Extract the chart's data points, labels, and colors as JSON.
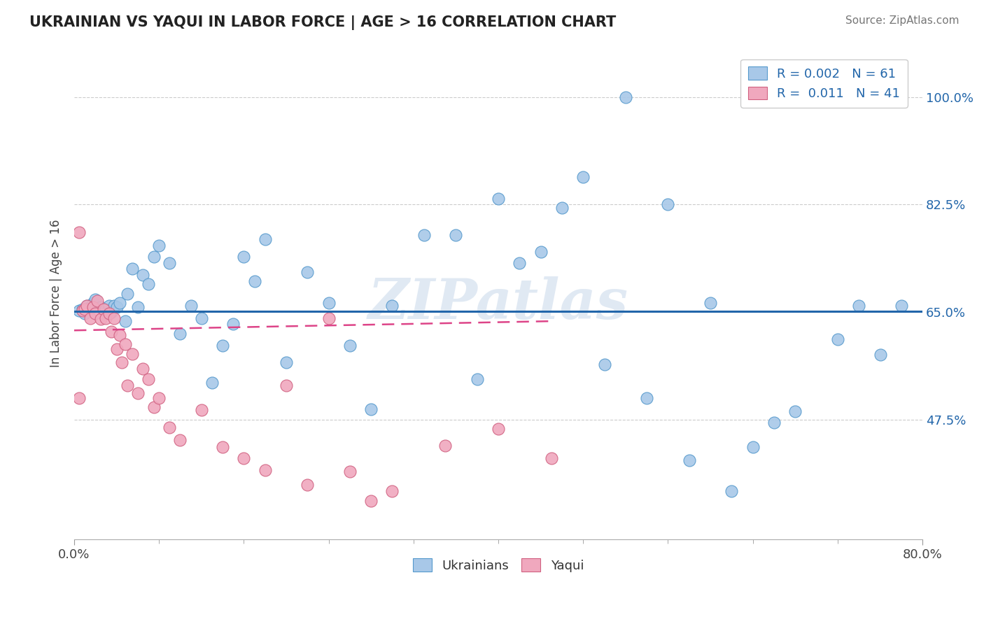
{
  "title": "UKRAINIAN VS YAQUI IN LABOR FORCE | AGE > 16 CORRELATION CHART",
  "source_text": "Source: ZipAtlas.com",
  "ylabel": "In Labor Force | Age > 16",
  "xlim": [
    0.0,
    0.8
  ],
  "ylim": [
    0.28,
    1.08
  ],
  "yticks": [
    0.475,
    0.65,
    0.825,
    1.0
  ],
  "ytick_labels": [
    "47.5%",
    "65.0%",
    "82.5%",
    "100.0%"
  ],
  "xtick_labels": [
    "0.0%",
    "80.0%"
  ],
  "blue_color": "#a8c8e8",
  "blue_edge_color": "#5599cc",
  "pink_color": "#f0a8be",
  "pink_edge_color": "#d06080",
  "blue_line_color": "#2266aa",
  "pink_line_color": "#dd4488",
  "legend_R_blue": "0.002",
  "legend_N_blue": "61",
  "legend_R_pink": "0.011",
  "legend_N_pink": "41",
  "watermark": "ZIPatlas",
  "blue_trend_x": [
    0.0,
    0.8
  ],
  "blue_trend_y": [
    0.651,
    0.651
  ],
  "pink_trend_x": [
    0.0,
    0.45
  ],
  "pink_trend_y": [
    0.62,
    0.635
  ],
  "blue_x": [
    0.005,
    0.008,
    0.01,
    0.012,
    0.015,
    0.018,
    0.02,
    0.025,
    0.028,
    0.03,
    0.033,
    0.035,
    0.038,
    0.04,
    0.043,
    0.048,
    0.05,
    0.055,
    0.06,
    0.065,
    0.07,
    0.075,
    0.08,
    0.09,
    0.1,
    0.11,
    0.12,
    0.13,
    0.14,
    0.15,
    0.16,
    0.17,
    0.18,
    0.2,
    0.22,
    0.24,
    0.26,
    0.28,
    0.3,
    0.33,
    0.36,
    0.4,
    0.44,
    0.48,
    0.5,
    0.52,
    0.56,
    0.6,
    0.64,
    0.68,
    0.72,
    0.38,
    0.42,
    0.46,
    0.54,
    0.58,
    0.62,
    0.66,
    0.74,
    0.76,
    0.78
  ],
  "blue_y": [
    0.652,
    0.655,
    0.648,
    0.66,
    0.658,
    0.665,
    0.67,
    0.658,
    0.648,
    0.655,
    0.66,
    0.65,
    0.66,
    0.658,
    0.665,
    0.635,
    0.68,
    0.72,
    0.658,
    0.71,
    0.695,
    0.74,
    0.758,
    0.73,
    0.615,
    0.66,
    0.64,
    0.535,
    0.595,
    0.63,
    0.74,
    0.7,
    0.768,
    0.568,
    0.715,
    0.665,
    0.595,
    0.492,
    0.66,
    0.775,
    0.775,
    0.835,
    0.748,
    0.87,
    0.565,
    1.0,
    0.825,
    0.665,
    0.43,
    0.488,
    0.605,
    0.54,
    0.73,
    0.82,
    0.51,
    0.408,
    0.358,
    0.47,
    0.66,
    0.58,
    0.66
  ],
  "pink_x": [
    0.005,
    0.008,
    0.01,
    0.012,
    0.015,
    0.018,
    0.02,
    0.022,
    0.025,
    0.028,
    0.03,
    0.033,
    0.035,
    0.038,
    0.04,
    0.043,
    0.045,
    0.048,
    0.05,
    0.055,
    0.06,
    0.065,
    0.07,
    0.075,
    0.08,
    0.09,
    0.1,
    0.12,
    0.14,
    0.16,
    0.18,
    0.2,
    0.22,
    0.24,
    0.26,
    0.28,
    0.3,
    0.35,
    0.4,
    0.45,
    0.005
  ],
  "pink_y": [
    0.78,
    0.652,
    0.655,
    0.66,
    0.64,
    0.658,
    0.648,
    0.668,
    0.638,
    0.655,
    0.64,
    0.648,
    0.618,
    0.64,
    0.59,
    0.612,
    0.568,
    0.598,
    0.53,
    0.582,
    0.518,
    0.558,
    0.54,
    0.495,
    0.51,
    0.462,
    0.442,
    0.49,
    0.43,
    0.412,
    0.392,
    0.53,
    0.368,
    0.64,
    0.39,
    0.342,
    0.358,
    0.432,
    0.46,
    0.412,
    0.51
  ]
}
